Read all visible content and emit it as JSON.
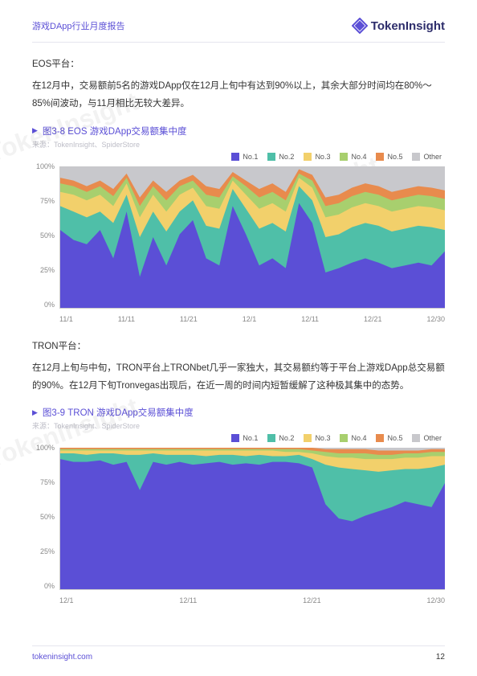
{
  "header": {
    "doc_title": "游戏DApp行业月度报告",
    "logo_text": "TokenInsight"
  },
  "watermarks": [
    "TokenInsight",
    "TokenInsight",
    "TokenInsight",
    "TokenInsight"
  ],
  "section_eos": {
    "label": "EOS平台：",
    "para": "在12月中，交易额前5名的游戏DApp仅在12月上旬中有达到90%以上，其余大部分时间均在80%～85%间波动，与11月相比无较大差异。"
  },
  "chart_eos": {
    "type": "area-stacked",
    "title": "图3-8 EOS 游戏DApp交易额集中度",
    "source": "来源：TokenInsight、SpiderStore",
    "legend": [
      "No.1",
      "No.2",
      "No.3",
      "No.4",
      "No.5",
      "Other"
    ],
    "colors": {
      "no1": "#5b4fd6",
      "no2": "#4fbfa8",
      "no3": "#f2d06b",
      "no4": "#a8cf6e",
      "no5": "#e88b4d",
      "other": "#c8c8cc"
    },
    "ylim": [
      0,
      100
    ],
    "yticks": [
      "100%",
      "75%",
      "50%",
      "25%",
      "0%"
    ],
    "xticks": [
      "11/1",
      "11/11",
      "11/21",
      "12/1",
      "12/11",
      "12/21",
      "12/30"
    ],
    "grid_color": "#eeeeee",
    "background": "#ffffff",
    "series_cum_from_top": {
      "no5_top": [
        92,
        90,
        86,
        90,
        84,
        95,
        78,
        90,
        82,
        90,
        94,
        86,
        84,
        96,
        90,
        84,
        88,
        82,
        98,
        94,
        78,
        80,
        85,
        88,
        86,
        82,
        84,
        86,
        85,
        83
      ],
      "no4_top": [
        88,
        86,
        82,
        86,
        79,
        92,
        72,
        86,
        76,
        86,
        90,
        80,
        78,
        93,
        86,
        78,
        82,
        76,
        95,
        90,
        72,
        74,
        79,
        82,
        80,
        76,
        78,
        80,
        79,
        77
      ],
      "no3_top": [
        82,
        80,
        76,
        80,
        72,
        88,
        64,
        80,
        68,
        80,
        85,
        72,
        70,
        90,
        80,
        70,
        74,
        68,
        92,
        85,
        64,
        66,
        71,
        74,
        72,
        68,
        70,
        72,
        71,
        69
      ],
      "no2_top": [
        72,
        68,
        64,
        68,
        60,
        80,
        50,
        68,
        54,
        68,
        76,
        58,
        56,
        84,
        70,
        56,
        60,
        54,
        86,
        76,
        50,
        52,
        57,
        60,
        58,
        54,
        56,
        58,
        57,
        55
      ],
      "no1_top": [
        55,
        48,
        45,
        55,
        35,
        68,
        22,
        50,
        30,
        52,
        62,
        35,
        30,
        72,
        52,
        30,
        35,
        28,
        74,
        60,
        25,
        28,
        32,
        35,
        32,
        28,
        30,
        32,
        30,
        40
      ]
    }
  },
  "section_tron": {
    "label": "TRON平台：",
    "para": "在12月上旬与中旬，TRON平台上TRONbet几乎一家独大，其交易额约等于平台上游戏DApp总交易额的90%。在12月下旬Tronvegas出现后，在近一周的时间内短暂缓解了这种极其集中的态势。"
  },
  "chart_tron": {
    "type": "area-stacked",
    "title": "图3-9 TRON 游戏DApp交易额集中度",
    "source": "来源：TokenInsight、SpiderStore",
    "legend": [
      "No.1",
      "No.2",
      "No.3",
      "No.4",
      "No.5",
      "Other"
    ],
    "colors": {
      "no1": "#5b4fd6",
      "no2": "#4fbfa8",
      "no3": "#f2d06b",
      "no4": "#a8cf6e",
      "no5": "#e88b4d",
      "other": "#c8c8cc"
    },
    "ylim": [
      0,
      100
    ],
    "yticks": [
      "100%",
      "75%",
      "50%",
      "25%",
      "0%"
    ],
    "xticks": [
      "12/1",
      "12/11",
      "12/21",
      "12/30"
    ],
    "grid_color": "#eeeeee",
    "background": "#ffffff",
    "series_cum_from_top": {
      "no5_top": [
        100,
        100,
        100,
        100,
        100,
        100,
        100,
        100,
        100,
        100,
        100,
        100,
        100,
        100,
        100,
        100,
        100,
        100,
        100,
        100,
        99,
        99,
        99,
        99,
        98,
        98,
        98,
        98,
        99,
        99
      ],
      "no4_top": [
        99,
        99,
        99,
        99,
        99,
        99,
        99,
        99,
        99,
        99,
        99,
        99,
        99,
        99,
        99,
        99,
        99,
        99,
        99,
        98,
        97,
        96,
        96,
        96,
        95,
        95,
        96,
        96,
        97,
        97
      ],
      "no3_top": [
        98,
        98,
        98,
        98,
        98,
        98,
        98,
        98,
        98,
        98,
        98,
        98,
        98,
        98,
        98,
        98,
        98,
        97,
        97,
        96,
        94,
        93,
        93,
        92,
        92,
        92,
        93,
        93,
        94,
        94
      ],
      "no2_top": [
        96,
        96,
        95,
        96,
        96,
        95,
        95,
        96,
        95,
        95,
        95,
        94,
        95,
        95,
        94,
        95,
        94,
        94,
        95,
        92,
        88,
        86,
        85,
        84,
        83,
        84,
        85,
        85,
        86,
        88
      ],
      "no1_top": [
        92,
        90,
        90,
        91,
        88,
        90,
        70,
        90,
        88,
        90,
        88,
        89,
        90,
        88,
        89,
        88,
        90,
        90,
        89,
        86,
        60,
        50,
        48,
        52,
        55,
        58,
        62,
        60,
        58,
        75
      ]
    }
  },
  "footer": {
    "site": "tokeninsight.com",
    "page": "12"
  }
}
